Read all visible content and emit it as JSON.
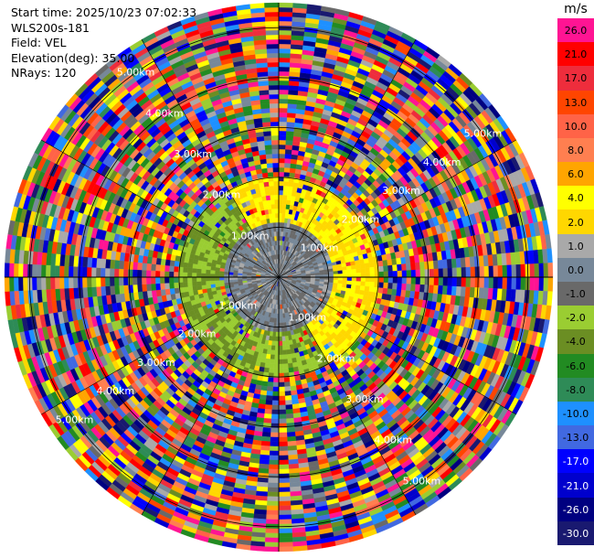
{
  "info": {
    "start_time": "Start time: 2025/10/23 07:02:33",
    "instrument": "WLS200s-181",
    "field": "Field: VEL",
    "elevation": "Elevation(deg): 35.00",
    "nrays": "NRays: 120"
  },
  "colorbar": {
    "unit": "m/s",
    "levels": [
      {
        "label": "26.0",
        "color": "#ff1493"
      },
      {
        "label": "21.0",
        "color": "#ff0000"
      },
      {
        "label": "17.0",
        "color": "#ee2d3c"
      },
      {
        "label": "13.0",
        "color": "#ff4500"
      },
      {
        "label": "10.0",
        "color": "#ff6347"
      },
      {
        "label": "8.0",
        "color": "#ff7f50"
      },
      {
        "label": "6.0",
        "color": "#ffa500"
      },
      {
        "label": "4.0",
        "color": "#ffff00"
      },
      {
        "label": "2.0",
        "color": "#ffd700"
      },
      {
        "label": "1.0",
        "color": "#a9a9a9"
      },
      {
        "label": "0.0",
        "color": "#778899"
      },
      {
        "label": "-1.0",
        "color": "#696969"
      },
      {
        "label": "-2.0",
        "color": "#9acd32"
      },
      {
        "label": "-4.0",
        "color": "#6b8e23"
      },
      {
        "label": "-6.0",
        "color": "#228b22"
      },
      {
        "label": "-8.0",
        "color": "#2e8b57"
      },
      {
        "label": "-10.0",
        "color": "#1e90ff"
      },
      {
        "label": "-13.0",
        "color": "#4169e1"
      },
      {
        "label": "-17.0",
        "color": "#0000ff"
      },
      {
        "label": "-21.0",
        "color": "#0000cd"
      },
      {
        "label": "-26.0",
        "color": "#000080"
      },
      {
        "label": "-30.0",
        "color": "#191970"
      }
    ]
  },
  "chart_data": {
    "type": "heatmap",
    "projection": "polar-ppi",
    "field": "VEL",
    "unit": "m/s",
    "nrays": 120,
    "range_rings_km": [
      1.0,
      2.0,
      3.0,
      4.0,
      5.0
    ],
    "range_ring_labels": [
      "1.00km",
      "2.00km",
      "3.00km",
      "4.00km",
      "5.00km"
    ],
    "max_range_km": 5.5,
    "spoke_step_deg": 30,
    "velocity_zones": [
      {
        "range_km": [
          0.0,
          1.1
        ],
        "dominant_vel_ms": [
          -1.0,
          0.0,
          1.0
        ]
      },
      {
        "range_km": [
          1.1,
          2.0
        ],
        "dominant_vel_ms": [
          -4.0,
          -2.0,
          2.0,
          4.0
        ]
      },
      {
        "range_km": [
          2.0,
          5.5
        ],
        "dominant_vel_ms": "noise: all bins"
      }
    ]
  }
}
